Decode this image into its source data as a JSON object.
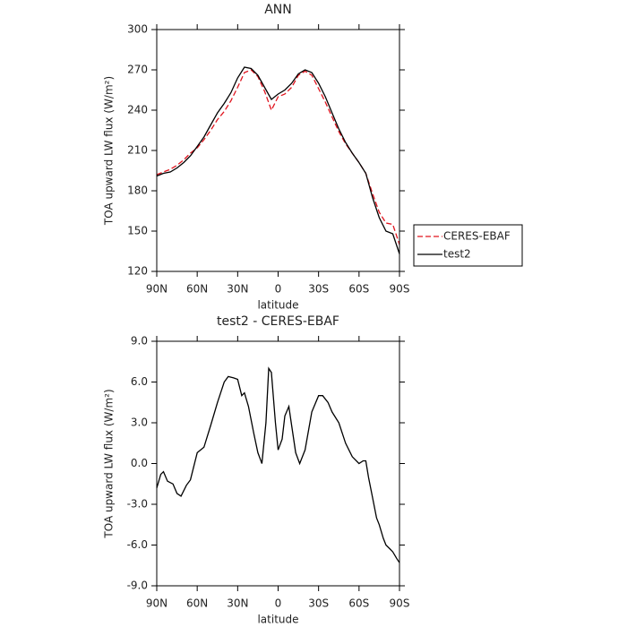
{
  "chart_data": [
    {
      "type": "line",
      "title": "ANN",
      "x_label": "latitude",
      "y_label": "TOA upward LW flux (W/m²)",
      "x": [
        90,
        85,
        80,
        75,
        70,
        65,
        60,
        55,
        50,
        45,
        40,
        35,
        30,
        25,
        20,
        15,
        10,
        5,
        0,
        -5,
        -10,
        -15,
        -20,
        -25,
        -30,
        -35,
        -40,
        -45,
        -50,
        -55,
        -60,
        -65,
        -70,
        -75,
        -80,
        -85,
        -90
      ],
      "series": [
        {
          "name": "CERES-EBAF",
          "color": "#e0141e",
          "dash": true,
          "values": [
            192,
            194,
            196,
            199,
            203,
            208,
            212,
            218,
            225,
            233,
            239,
            247,
            257,
            268,
            270,
            265,
            254,
            240,
            250,
            252,
            257,
            266,
            269,
            266,
            256,
            246,
            235,
            224,
            215,
            208,
            201,
            193,
            178,
            164,
            156,
            155,
            140
          ]
        },
        {
          "name": "test2",
          "color": "#000000",
          "dash": false,
          "values": [
            191,
            193,
            194,
            197,
            201,
            206,
            213,
            220,
            229,
            238,
            245,
            253,
            264,
            272,
            271,
            266,
            257,
            248,
            252,
            255,
            260,
            267,
            270,
            268,
            260,
            250,
            238,
            226,
            216,
            208,
            201,
            193,
            175,
            160,
            150,
            148,
            133
          ]
        }
      ],
      "xlim": [
        90,
        -90
      ],
      "xticks": [
        {
          "value": 90,
          "label": "90N"
        },
        {
          "value": 60,
          "label": "60N"
        },
        {
          "value": 30,
          "label": "30N"
        },
        0,
        {
          "value": -30,
          "label": "30S"
        },
        {
          "value": -60,
          "label": "60S"
        },
        {
          "value": -90,
          "label": "90S"
        }
      ],
      "ylim": [
        120,
        300
      ],
      "yticks": [
        120,
        150,
        180,
        210,
        240,
        270,
        300
      ],
      "legend": "right",
      "grid": false
    },
    {
      "type": "line",
      "title": "test2 - CERES-EBAF",
      "x_label": "latitude",
      "y_label": "TOA upward LW flux (W/m²)",
      "x": [
        90,
        87,
        85,
        82,
        78,
        75,
        72,
        68,
        65,
        60,
        55,
        50,
        45,
        40,
        37,
        33,
        30,
        27,
        25,
        22,
        18,
        15,
        12,
        9,
        7,
        5,
        2,
        0,
        -3,
        -5,
        -8,
        -10,
        -13,
        -16,
        -20,
        -25,
        -30,
        -33,
        -37,
        -40,
        -45,
        -50,
        -55,
        -60,
        -63,
        -65,
        -67,
        -70,
        -73,
        -75,
        -78,
        -80,
        -83,
        -85,
        -88,
        -90
      ],
      "series": [
        {
          "color": "#000000",
          "dash": false,
          "values": [
            -1.8,
            -0.8,
            -0.6,
            -1.3,
            -1.5,
            -2.2,
            -2.4,
            -1.6,
            -1.2,
            0.8,
            1.2,
            2.8,
            4.5,
            6.0,
            6.4,
            6.3,
            6.2,
            5.0,
            5.2,
            4.2,
            2.2,
            0.8,
            0.0,
            3.0,
            7.0,
            6.7,
            3.0,
            1.0,
            1.8,
            3.5,
            4.2,
            2.8,
            0.8,
            0.0,
            1.0,
            3.8,
            5.0,
            5.0,
            4.5,
            3.8,
            3.0,
            1.5,
            0.5,
            0.0,
            0.2,
            0.2,
            -1.0,
            -2.5,
            -4.0,
            -4.5,
            -5.5,
            -6.0,
            -6.3,
            -6.5,
            -7.0,
            -7.3
          ]
        }
      ],
      "xlim": [
        90,
        -90
      ],
      "xticks": [
        {
          "value": 90,
          "label": "90N"
        },
        {
          "value": 60,
          "label": "60N"
        },
        {
          "value": 30,
          "label": "30N"
        },
        0,
        {
          "value": -30,
          "label": "30S"
        },
        {
          "value": -60,
          "label": "60S"
        },
        {
          "value": -90,
          "label": "90S"
        }
      ],
      "ylim": [
        -9,
        9
      ],
      "yticks": [
        {
          "value": -9,
          "label": "-9.0"
        },
        {
          "value": -6,
          "label": "-6.0"
        },
        {
          "value": -3,
          "label": "-3.0"
        },
        {
          "value": 0,
          "label": "0.0"
        },
        {
          "value": 3,
          "label": "3.0"
        },
        {
          "value": 6,
          "label": "6.0"
        },
        {
          "value": 9,
          "label": "9.0"
        }
      ],
      "grid": false
    }
  ]
}
